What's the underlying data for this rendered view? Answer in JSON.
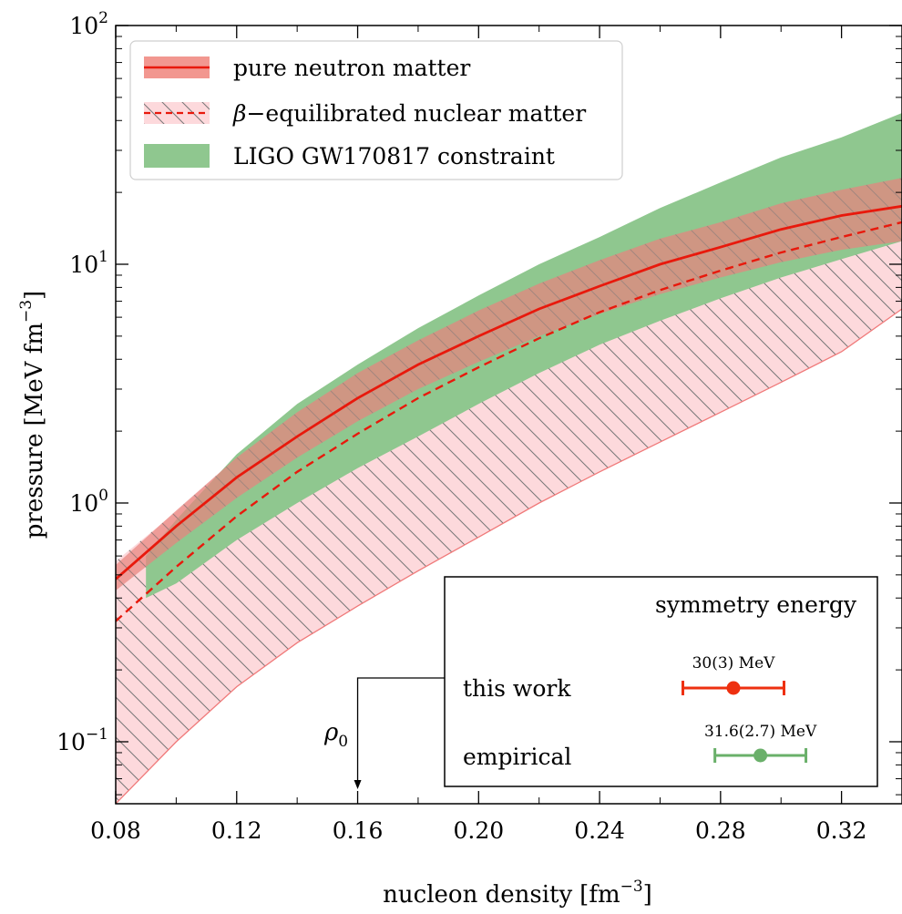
{
  "chart_data": {
    "type": "area",
    "xlabel": "nucleon density",
    "xlabel_unit": "[fm",
    "xlabel_unit_exp": "−3",
    "xlabel_unit_close": "]",
    "ylabel": "pressure",
    "ylabel_unit": "[MeV fm",
    "ylabel_unit_exp": "−3",
    "ylabel_unit_close": "]",
    "xlim": [
      0.08,
      0.34
    ],
    "ylim": [
      0.055,
      100
    ],
    "yscale": "log",
    "x_ticks": [
      {
        "v": 0.08,
        "label": "0.08"
      },
      {
        "v": 0.12,
        "label": "0.12"
      },
      {
        "v": 0.16,
        "label": "0.16"
      },
      {
        "v": 0.2,
        "label": "0.20"
      },
      {
        "v": 0.24,
        "label": "0.24"
      },
      {
        "v": 0.28,
        "label": "0.28"
      },
      {
        "v": 0.32,
        "label": "0.32"
      }
    ],
    "y_ticks": [
      {
        "v": 0.1,
        "base": "10",
        "exp": "−1"
      },
      {
        "v": 1,
        "base": "10",
        "exp": "0"
      },
      {
        "v": 10,
        "base": "10",
        "exp": "1"
      },
      {
        "v": 100,
        "base": "10",
        "exp": "2"
      }
    ],
    "x": [
      0.08,
      0.1,
      0.12,
      0.14,
      0.16,
      0.18,
      0.2,
      0.22,
      0.24,
      0.26,
      0.28,
      0.3,
      0.32,
      0.34
    ],
    "series": [
      {
        "name": "LIGO GW170817 constraint",
        "kind": "band",
        "color": "#8fc78f",
        "x": [
          0.09,
          0.1,
          0.12,
          0.14,
          0.16,
          0.18,
          0.2,
          0.22,
          0.24,
          0.26,
          0.28,
          0.3,
          0.32,
          0.34
        ],
        "lower": [
          0.4,
          0.46,
          0.7,
          1.0,
          1.4,
          1.9,
          2.6,
          3.5,
          4.6,
          5.8,
          7.2,
          8.8,
          10.5,
          12.5
        ],
        "upper": [
          0.6,
          0.85,
          1.6,
          2.6,
          3.8,
          5.4,
          7.4,
          10.0,
          13.0,
          17.2,
          22.0,
          28.0,
          34.0,
          43.0
        ]
      },
      {
        "name": "pure neutron matter",
        "kind": "band_line",
        "band_color": "#e8847e",
        "line_color": "#e8190c",
        "lower": [
          0.43,
          0.68,
          1.05,
          1.55,
          2.2,
          3.0,
          3.9,
          5.0,
          6.2,
          7.5,
          8.8,
          10.2,
          11.5,
          12.5
        ],
        "center": [
          0.48,
          0.8,
          1.28,
          1.9,
          2.75,
          3.8,
          5.0,
          6.5,
          8.1,
          10.0,
          11.8,
          14.0,
          16.0,
          17.5
        ],
        "upper": [
          0.55,
          0.93,
          1.55,
          2.4,
          3.5,
          4.8,
          6.4,
          8.3,
          10.4,
          12.8,
          15.0,
          18.0,
          20.5,
          23.0
        ]
      },
      {
        "name": "β−equilibrated nuclear matter",
        "kind": "hatched_band_line",
        "band_color": "#fdd9dc",
        "edge_color": "#f07a7a",
        "line_color": "#e8190c",
        "lower": [
          0.055,
          0.1,
          0.17,
          0.26,
          0.37,
          0.52,
          0.72,
          1.0,
          1.35,
          1.8,
          2.4,
          3.2,
          4.3,
          6.5
        ],
        "center": [
          0.32,
          0.54,
          0.88,
          1.35,
          1.95,
          2.75,
          3.7,
          4.9,
          6.3,
          7.8,
          9.4,
          11.2,
          13.0,
          15.0
        ],
        "upper": [
          0.57,
          0.92,
          1.55,
          2.4,
          3.5,
          4.8,
          6.4,
          8.3,
          10.4,
          12.8,
          15.0,
          18.0,
          20.5,
          23.0
        ]
      }
    ],
    "legend": {
      "placement": "top-left",
      "entries": [
        {
          "label": "pure neutron matter"
        },
        {
          "label_symbol": "β",
          "label": "−equilibrated nuclear matter"
        },
        {
          "label": "LIGO GW170817 constraint"
        }
      ]
    },
    "annotation": {
      "label": "ρ",
      "label_sub": "0",
      "x": 0.16
    },
    "inset": {
      "title": "symmetry energy",
      "xlim": [
        20,
        40
      ],
      "rows": [
        {
          "label": "this work",
          "value": 30,
          "err": 3,
          "value_label": "30(3) MeV",
          "color": "#ee3010"
        },
        {
          "label": "empirical",
          "value": 31.6,
          "err": 2.7,
          "value_label": "31.6(2.7) MeV",
          "color": "#6ab06a"
        }
      ]
    }
  }
}
